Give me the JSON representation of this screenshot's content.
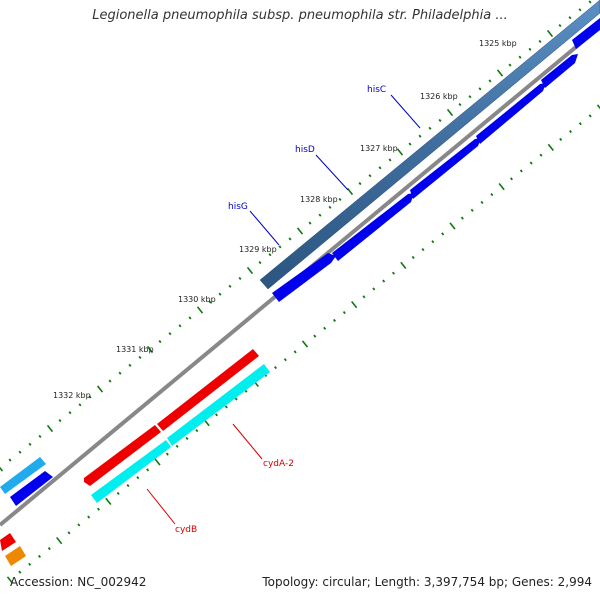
{
  "title": "Legionella pneumophila subsp. pneumophila str. Philadelphia ...",
  "footer": {
    "accession": "Accession: NC_002942",
    "summary": "Topology: circular; Length: 3,397,754 bp; Genes: 2,994"
  },
  "ruler": {
    "labels": [
      "1325 kbp",
      "1326 kbp",
      "1327 kbp",
      "1328 kbp",
      "1329 kbp",
      "1330 kbp",
      "1331 kbp",
      "1332 kbp"
    ]
  },
  "genes": [
    {
      "name": "hisC",
      "color": "#0000cc"
    },
    {
      "name": "hisD",
      "color": "#0000cc"
    },
    {
      "name": "hisG",
      "color": "#0000cc"
    },
    {
      "name": "cydA-2",
      "color": "#dd0000"
    },
    {
      "name": "cydB",
      "color": "#dd0000"
    }
  ],
  "colors": {
    "forward_cds": "#0000ee",
    "forward_gene": "#4a7aab",
    "reverse_cds": "#ee0000",
    "reverse_gene": "#00eeee",
    "backbone": "#888888",
    "tick": "#117711",
    "orange_feature": "#ee8800",
    "light_blue_feature": "#22aaee"
  }
}
